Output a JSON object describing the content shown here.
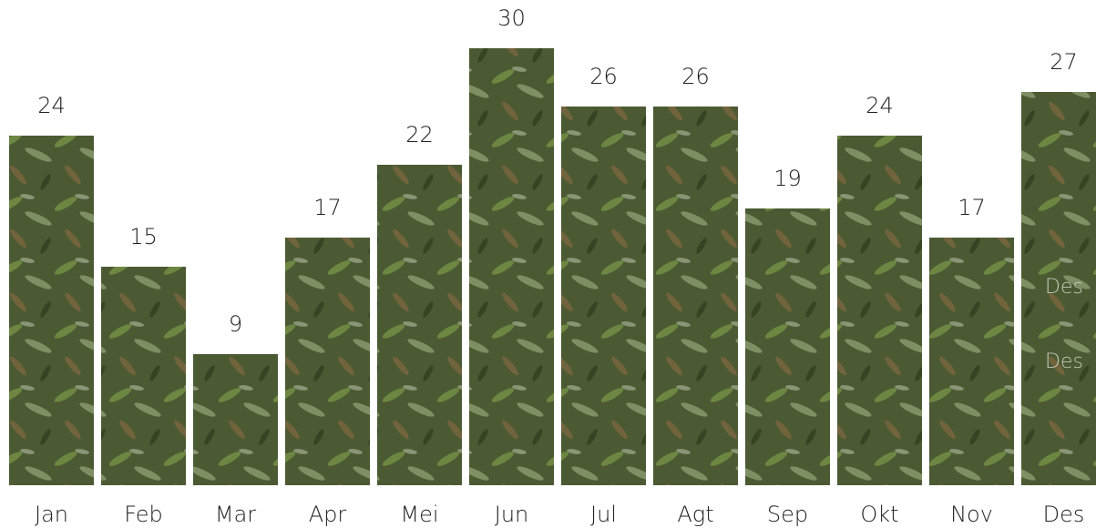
{
  "chart_data": {
    "type": "bar",
    "categories": [
      "Jan",
      "Feb",
      "Mar",
      "Apr",
      "Mei",
      "Jun",
      "Jul",
      "Agt",
      "Sep",
      "Okt",
      "Nov",
      "Des"
    ],
    "values": [
      24,
      15,
      9,
      17,
      22,
      30,
      26,
      26,
      19,
      24,
      17,
      27
    ],
    "color": "#4b5a32",
    "annotations": [
      "Des",
      "Des"
    ]
  }
}
